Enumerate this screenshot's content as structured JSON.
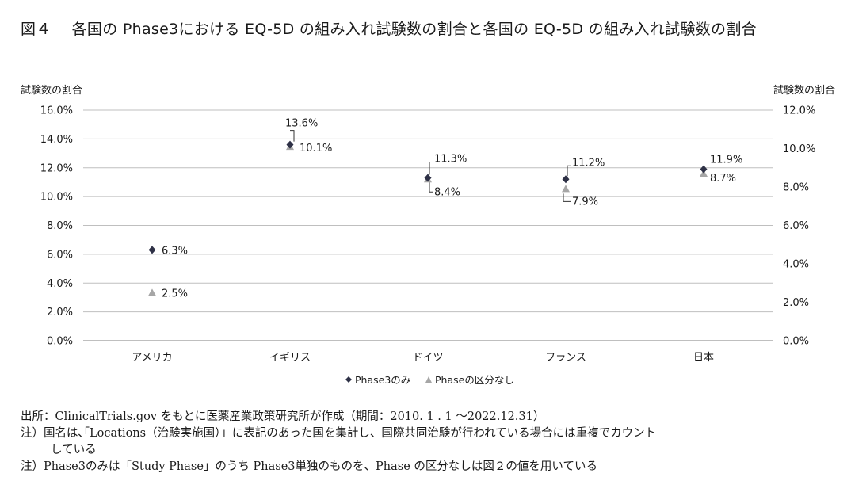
{
  "title": {
    "figure": "図４",
    "text": "各国の Phase3における EQ-5D の組み入れ試験数の割合と各国の EQ-5D の組み入れ試験数の割合"
  },
  "chart_data": {
    "type": "scatter",
    "categories": [
      "アメリカ",
      "イギリス",
      "ドイツ",
      "フランス",
      "日本"
    ],
    "y_left_label": "試験数の割合",
    "y_right_label": "試験数の割合",
    "y_left_lim": [
      0,
      16
    ],
    "y_right_lim": [
      0,
      12
    ],
    "y_left_ticks": [
      "0.0%",
      "2.0%",
      "4.0%",
      "6.0%",
      "8.0%",
      "10.0%",
      "12.0%",
      "14.0%",
      "16.0%"
    ],
    "y_right_ticks": [
      "0.0%",
      "2.0%",
      "4.0%",
      "6.0%",
      "8.0%",
      "10.0%",
      "12.0%"
    ],
    "grid": true,
    "legend_position": "bottom",
    "series": [
      {
        "name": "Phase3のみ",
        "axis": "left",
        "marker": "diamond",
        "color": "#2e3146",
        "values": [
          6.3,
          13.6,
          11.3,
          11.2,
          11.9
        ],
        "labels": [
          "6.3%",
          "13.6%",
          "11.3%",
          "11.2%",
          "11.9%"
        ]
      },
      {
        "name": "Phaseの区分なし",
        "axis": "right",
        "marker": "triangle",
        "color": "#a6a6a6",
        "values": [
          2.5,
          10.1,
          8.4,
          7.9,
          8.7
        ],
        "labels": [
          "2.5%",
          "10.1%",
          "8.4%",
          "7.9%",
          "8.7%"
        ]
      }
    ]
  },
  "notes": {
    "source": "出所：ClinicalTrials.gov をもとに医薬産業政策研究所が作成（期間：2010. 1 . 1 ～2022.12.31）",
    "note1_line1": "注）国名は､｢Locations（治験実施国）」に表記のあった国を集計し、国際共同治験が行われている場合には重複でカウント",
    "note1_line2": "している",
    "note2": "注）Phase3のみは「Study Phase」のうち Phase3単独のものを、Phase の区分なしは図２の値を用いている"
  }
}
